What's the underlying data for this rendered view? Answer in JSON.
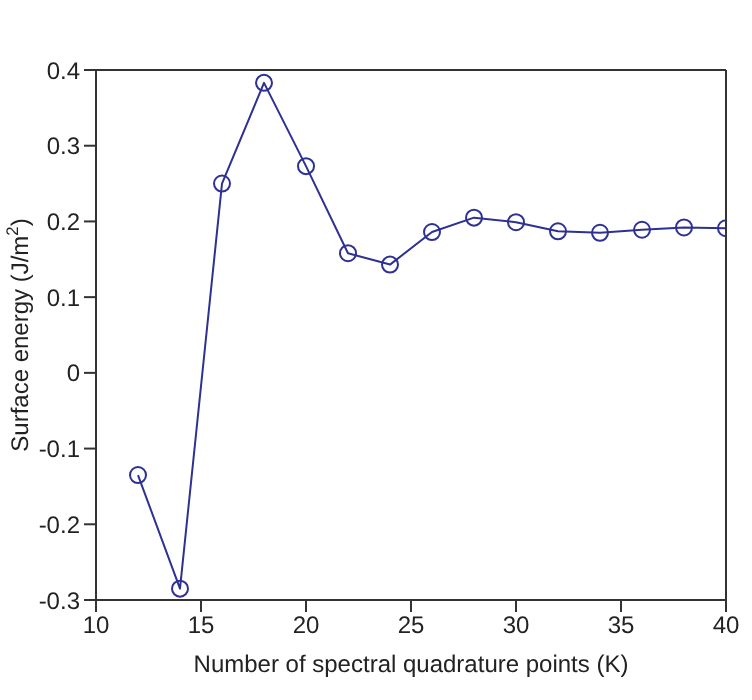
{
  "chart_data": {
    "type": "line",
    "xlabel": "Number of spectral quadrature points (K)",
    "ylabel": "Surface energy (J/m$^{2}$)",
    "x": [
      12,
      14,
      16,
      18,
      20,
      22,
      24,
      26,
      28,
      30,
      32,
      34,
      36,
      38,
      40
    ],
    "series": [
      {
        "color": "#2e3192",
        "values": [
          -0.135,
          -0.285,
          0.25,
          0.383,
          0.273,
          0.158,
          0.143,
          0.186,
          0.205,
          0.199,
          0.187,
          0.185,
          0.189,
          0.192,
          0.191
        ]
      }
    ],
    "xlim": [
      10,
      40
    ],
    "xticks": [
      10,
      15,
      20,
      25,
      30,
      35,
      40
    ],
    "ylim": [
      -0.3,
      0.4
    ],
    "yticks": [
      -0.3,
      -0.2,
      -0.1,
      0,
      0.1,
      0.2,
      0.3,
      0.4
    ],
    "grid": false,
    "legend": false,
    "marker": "circle",
    "line_style": "solid"
  }
}
